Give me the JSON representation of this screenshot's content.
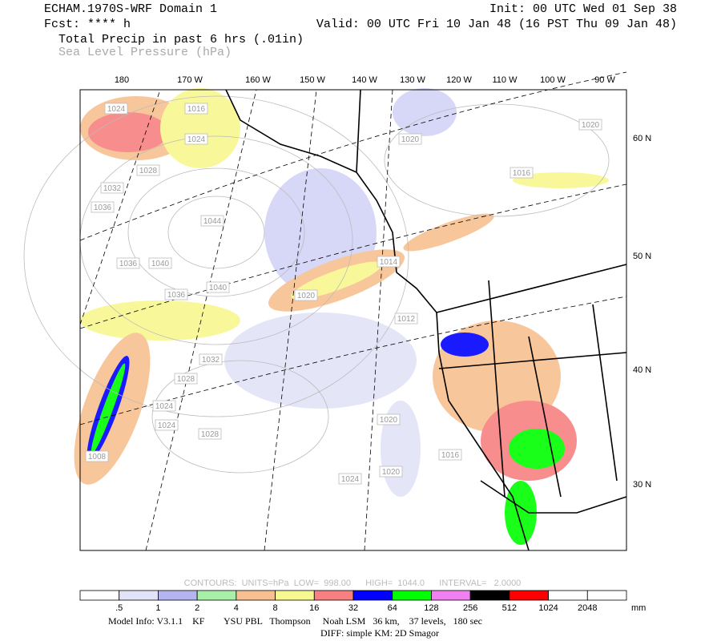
{
  "header": {
    "title": "ECHAM.1970S-WRF Domain 1",
    "init": "Init: 00 UTC Wed 01 Sep 38",
    "forecast": "Fcst: **** h",
    "valid": "Valid: 00 UTC Fri 10 Jan 48 (16 PST Thu 09 Jan 48)",
    "field_primary": "Total Precip in past 6 hrs (.01in)",
    "field_secondary": "Sea Level Pressure (hPa)"
  },
  "map": {
    "longitude_labels": [
      "180",
      "170 W",
      "160 W",
      "150 W",
      "140 W",
      "130 W",
      "120 W",
      "110 W",
      "100 W",
      "90 W"
    ],
    "latitude_labels": [
      "60 N",
      "50 N",
      "40 N",
      "30 N"
    ],
    "isobar_labels": [
      "1024",
      "1016",
      "1024",
      "1028",
      "1032",
      "1036",
      "1044",
      "1036",
      "1040",
      "1040",
      "1036",
      "1020",
      "1012",
      "1032",
      "1028",
      "1024",
      "1024",
      "1028",
      "1016",
      "1020",
      "1024",
      "1020",
      "1008",
      "1014",
      "1020",
      "1016",
      "1020"
    ]
  },
  "contour_info": "CONTOURS:  UNITS=hPa  LOW=  998.00      HIGH=  1044.0      INTERVAL=   2.0000",
  "legend": {
    "thresholds": [
      {
        "value": 0.5,
        "label": ".5"
      },
      1,
      2,
      4,
      8,
      16,
      32,
      64,
      128,
      256,
      512,
      1024,
      2048
    ],
    "colors": [
      "#ffffff",
      "#e2e2f8",
      "#b4b4f0",
      "#a8f0a8",
      "#f8c090",
      "#f8f890",
      "#f88080",
      "#0000ff",
      "#00ff00",
      "#f080f0",
      "#000000",
      "#ff0000",
      "#ffffff",
      "#ffffff"
    ],
    "unit": "mm"
  },
  "footer": {
    "model_info": "Model Info: V3.1.1    KF        YSU PBL   Thompson     Noah LSM   36 km,    37 levels,   180 sec",
    "diff": "DIFF: simple KM: 2D Smagor"
  }
}
